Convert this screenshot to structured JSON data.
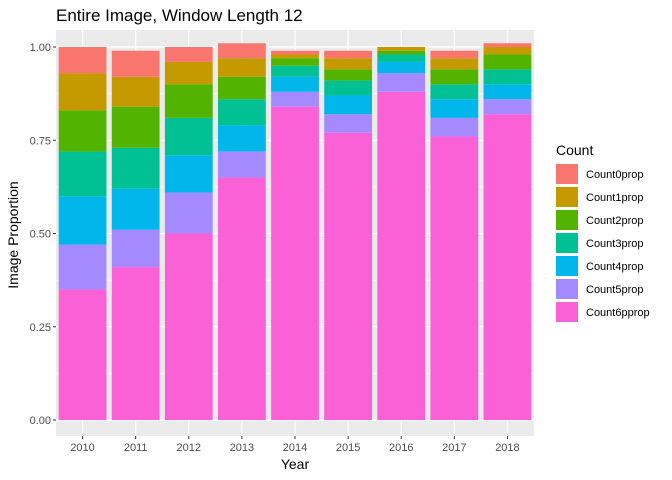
{
  "chart_data": {
    "type": "bar",
    "stacked": true,
    "title": "Entire Image, Window Length 12",
    "xlabel": "Year",
    "ylabel": "Image Proportion",
    "ylim": [
      0,
      1
    ],
    "yticks": [
      "0.00",
      "0.25",
      "0.50",
      "0.75",
      "1.00"
    ],
    "ytick_values": [
      0,
      0.25,
      0.5,
      0.75,
      1.0
    ],
    "categories": [
      "2010",
      "2011",
      "2012",
      "2013",
      "2014",
      "2015",
      "2016",
      "2017",
      "2018"
    ],
    "legend_title": "Count",
    "legend_position": "right",
    "grid": true,
    "panel_background": "#ebebeb",
    "series": [
      {
        "name": "Count0prop",
        "color": "#F8766D",
        "values": [
          0.07,
          0.07,
          0.04,
          0.04,
          0.01,
          0.02,
          0.0,
          0.02,
          0.01
        ]
      },
      {
        "name": "Count1prop",
        "color": "#C49A00",
        "values": [
          0.1,
          0.08,
          0.06,
          0.05,
          0.01,
          0.03,
          0.01,
          0.03,
          0.02
        ]
      },
      {
        "name": "Count2prop",
        "color": "#53B400",
        "values": [
          0.11,
          0.11,
          0.09,
          0.06,
          0.02,
          0.03,
          0.01,
          0.04,
          0.04
        ]
      },
      {
        "name": "Count3prop",
        "color": "#00C094",
        "values": [
          0.12,
          0.11,
          0.1,
          0.07,
          0.03,
          0.04,
          0.02,
          0.04,
          0.04
        ]
      },
      {
        "name": "Count4prop",
        "color": "#00B6EB",
        "values": [
          0.13,
          0.11,
          0.1,
          0.07,
          0.04,
          0.05,
          0.03,
          0.05,
          0.04
        ]
      },
      {
        "name": "Count5prop",
        "color": "#A58AFF",
        "values": [
          0.12,
          0.1,
          0.11,
          0.07,
          0.04,
          0.05,
          0.05,
          0.05,
          0.04
        ]
      },
      {
        "name": "Count6pprop",
        "color": "#FB61D7",
        "values": [
          0.35,
          0.41,
          0.5,
          0.65,
          0.84,
          0.77,
          0.88,
          0.76,
          0.82
        ]
      }
    ]
  }
}
